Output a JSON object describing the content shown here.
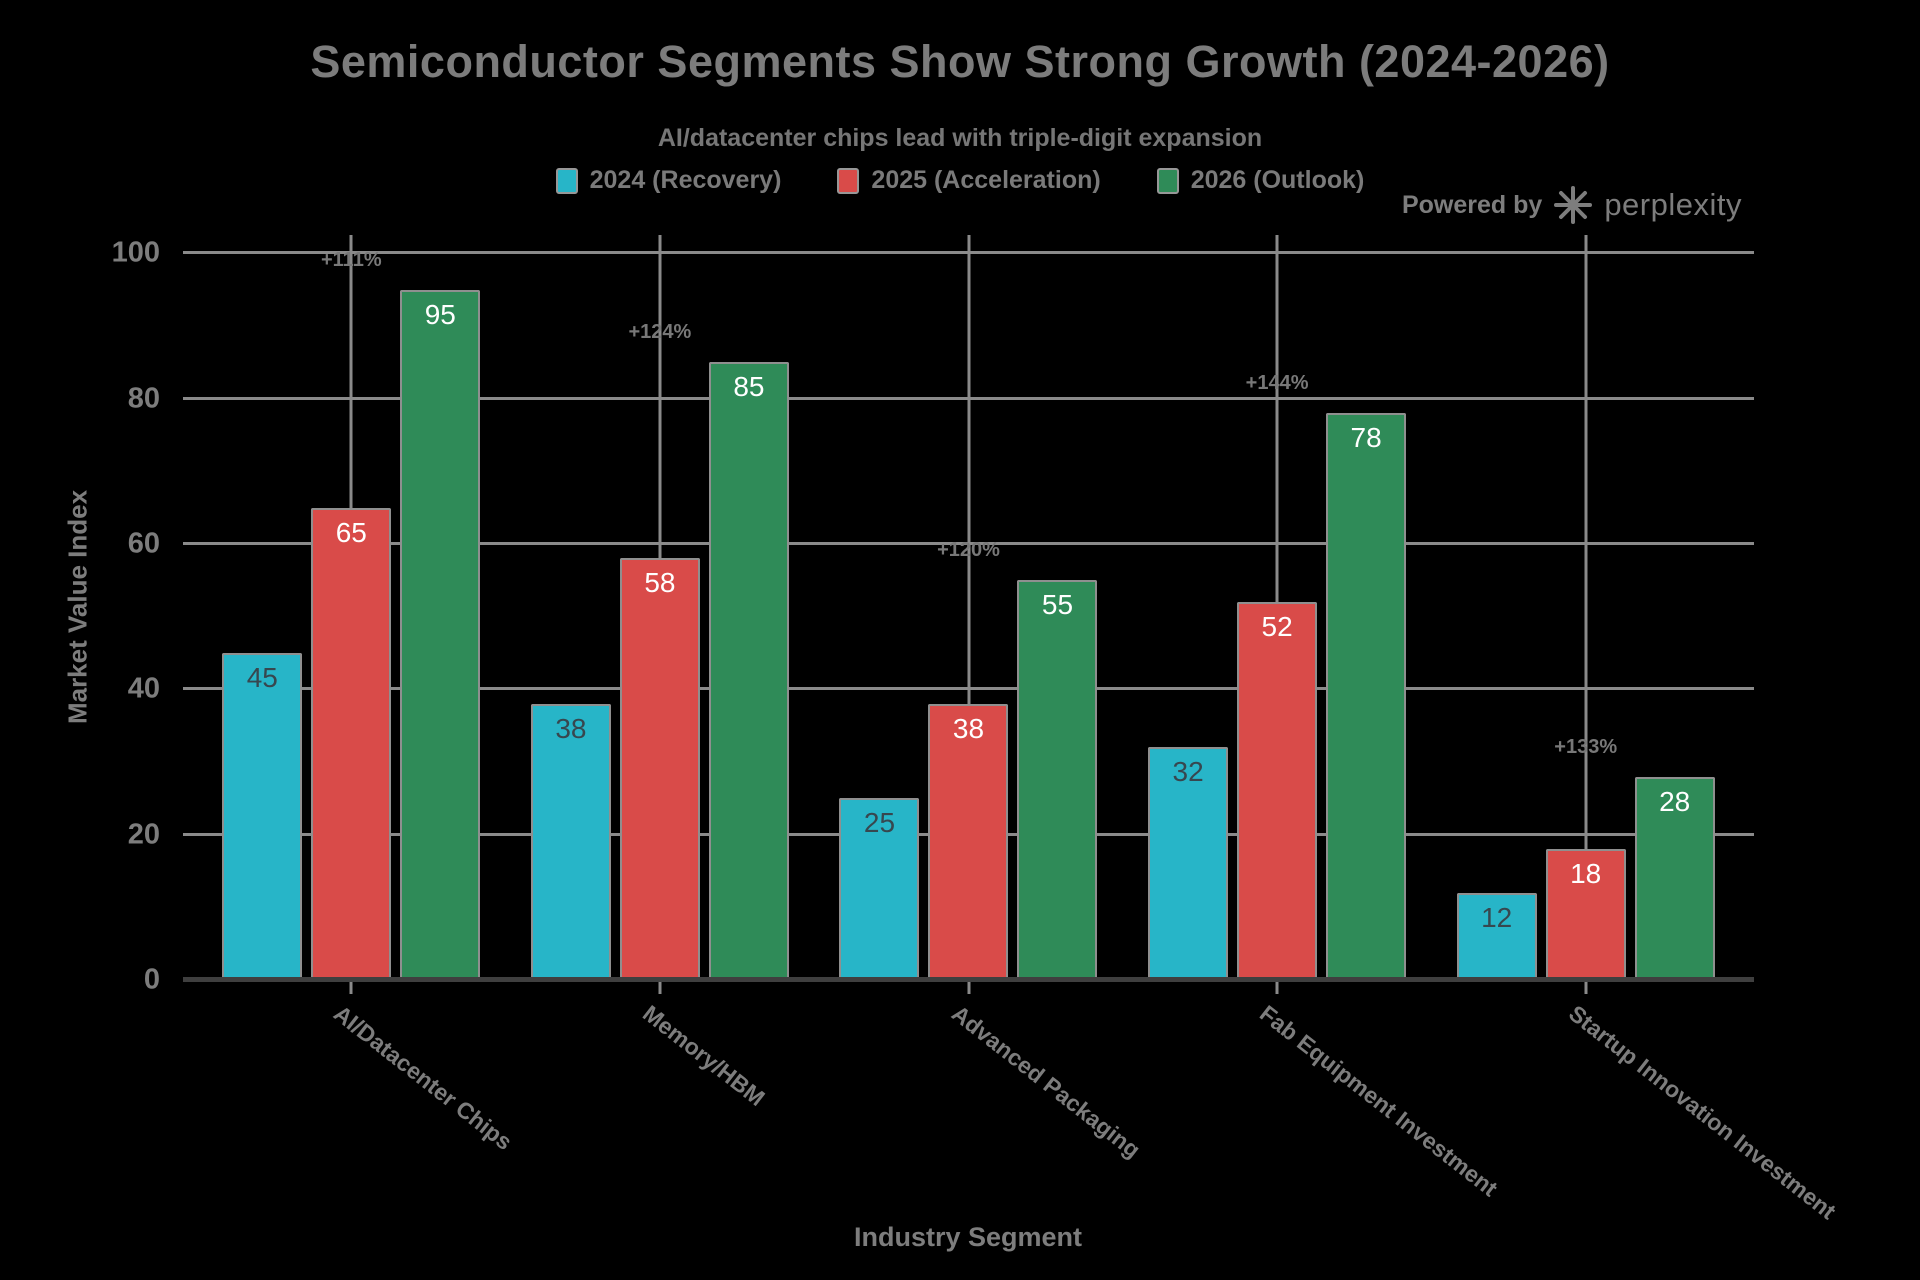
{
  "header": {
    "powered_by_label": "Powered by",
    "brand_name": "perplexity",
    "logo_icon": "perplexity-asterisk-icon"
  },
  "chart_data": {
    "type": "bar",
    "title": "Semiconductor Segments Show Strong Growth (2024-2026)",
    "subtitle": "AI/datacenter chips lead with triple-digit expansion",
    "xlabel": "Industry Segment",
    "ylabel": "Market Value Index",
    "categories": [
      "AI/Datacenter Chips",
      "Memory/HBM",
      "Advanced Packaging",
      "Fab Equipment Investment",
      "Startup Innovation Investment"
    ],
    "series": [
      {
        "name": "2024 (Recovery)",
        "color": "#27b5c8",
        "label_color": "#37474f",
        "values": [
          45,
          38,
          25,
          32,
          12
        ]
      },
      {
        "name": "2025 (Acceleration)",
        "color": "#d94b49",
        "label_color": "#ffffff",
        "values": [
          65,
          58,
          38,
          52,
          18
        ]
      },
      {
        "name": "2026 (Outlook)",
        "color": "#2f8b58",
        "label_color": "#ffffff",
        "values": [
          95,
          85,
          55,
          78,
          28
        ]
      }
    ],
    "growth_annotations": [
      "+111%",
      "+124%",
      "+120%",
      "+144%",
      "+133%"
    ],
    "y_ticks": [
      0,
      20,
      40,
      60,
      80,
      100
    ],
    "ylim": [
      0,
      100
    ],
    "grid": true,
    "legend_position": "top-center",
    "background_color": "#000000",
    "grid_color": "#8a8a8a",
    "text_color": "#7d7d7d"
  }
}
